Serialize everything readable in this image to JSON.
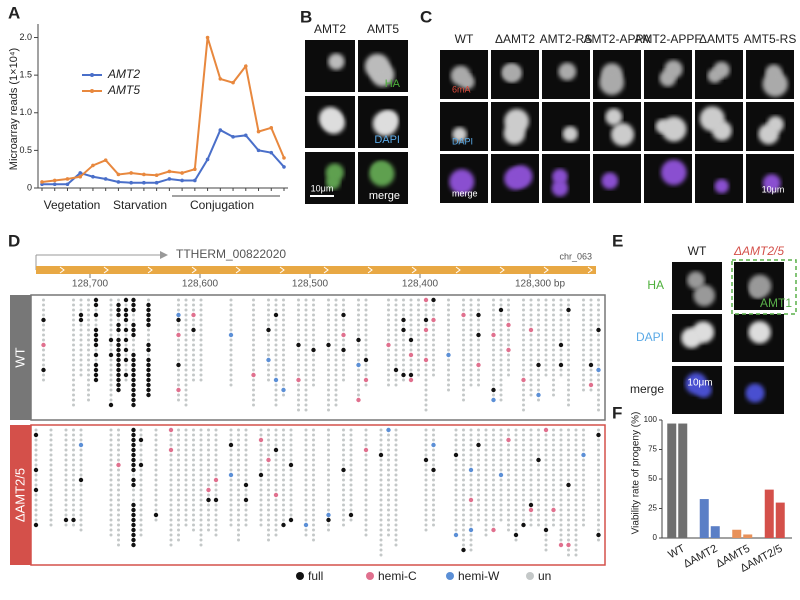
{
  "panel_labels": [
    "A",
    "B",
    "C",
    "D",
    "E",
    "F"
  ],
  "chart_data": [
    {
      "type": "line",
      "y_label": "Microarray reads (1×10⁴)",
      "categories": [
        null,
        null,
        null,
        null,
        null,
        null,
        null,
        null,
        null,
        null,
        null,
        null,
        null,
        null,
        null,
        null,
        null,
        null,
        null,
        null
      ],
      "x_groups": [
        "Vegetation",
        "Starvation",
        "Conjugation"
      ],
      "series": [
        {
          "name": "AMT2",
          "color": "#4a6fc9",
          "values": [
            0.05,
            0.05,
            0.05,
            0.2,
            0.15,
            0.12,
            0.08,
            0.07,
            0.07,
            0.07,
            0.12,
            0.1,
            0.1,
            0.38,
            0.77,
            0.68,
            0.7,
            0.5,
            0.47,
            0.28
          ]
        },
        {
          "name": "AMT5",
          "color": "#e8883e",
          "values": [
            0.08,
            0.1,
            0.12,
            0.15,
            0.3,
            0.37,
            0.18,
            0.2,
            0.18,
            0.17,
            0.22,
            0.2,
            0.25,
            2.0,
            1.45,
            1.4,
            1.62,
            0.75,
            0.8,
            0.4
          ]
        }
      ],
      "ylim": [
        0,
        2.1
      ],
      "yticks": [
        0,
        0.5,
        {
          "value": 1,
          "label": "1.0"
        },
        1.5,
        {
          "value": 2,
          "label": "2.0"
        }
      ],
      "grid": false
    },
    {
      "type": "bar",
      "y_label": "Viability rate of progeny (%)",
      "categories": [
        "WT",
        "ΔAMT2",
        "ΔAMT5",
        "ΔAMT2/5"
      ],
      "colors": [
        "#6f6f6f",
        "#5b7fc6",
        "#e8915a",
        "#d4504a"
      ],
      "series": [
        {
          "values": [
            97,
            33,
            7,
            41
          ]
        },
        {
          "values": [
            97,
            10,
            3,
            30
          ]
        }
      ],
      "ylim": [
        0,
        100
      ],
      "yticks": [
        0,
        25,
        50,
        75,
        100
      ],
      "grid": false
    }
  ],
  "panel_b": {
    "columns": [
      "AMT2",
      "AMT5"
    ],
    "channels": [
      "HA",
      "DAPI",
      "merge"
    ],
    "scale": "10μm"
  },
  "panel_c": {
    "columns": [
      "WT",
      "ΔAMT2",
      "AMT2-RS",
      "AMT2-APPA",
      "AMT2-APPF",
      "ΔAMT5",
      "AMT5-RS"
    ],
    "channels": [
      "6mA",
      "DAPI",
      "merge"
    ],
    "scale": "10μm"
  },
  "panel_d": {
    "gene": "TTHERM_00822020",
    "chr": "chr_063",
    "positions": [
      "128,700",
      "128,600",
      "128,500",
      "128,400",
      "128,300 bp"
    ],
    "groups": [
      "WT",
      "ΔAMT2/5"
    ],
    "legend": [
      {
        "label": "full",
        "color": "#111111"
      },
      {
        "label": "hemi-C",
        "color": "#e0708e"
      },
      {
        "label": "hemi-W",
        "color": "#5b8fd6"
      },
      {
        "label": "un",
        "color": "#c4c8c8"
      }
    ]
  },
  "panel_e": {
    "columns": [
      "WT",
      "ΔAMT2/5"
    ],
    "channels": [
      "HA",
      "DAPI",
      "merge"
    ],
    "inset": "AMT1",
    "scale": "10μm"
  }
}
